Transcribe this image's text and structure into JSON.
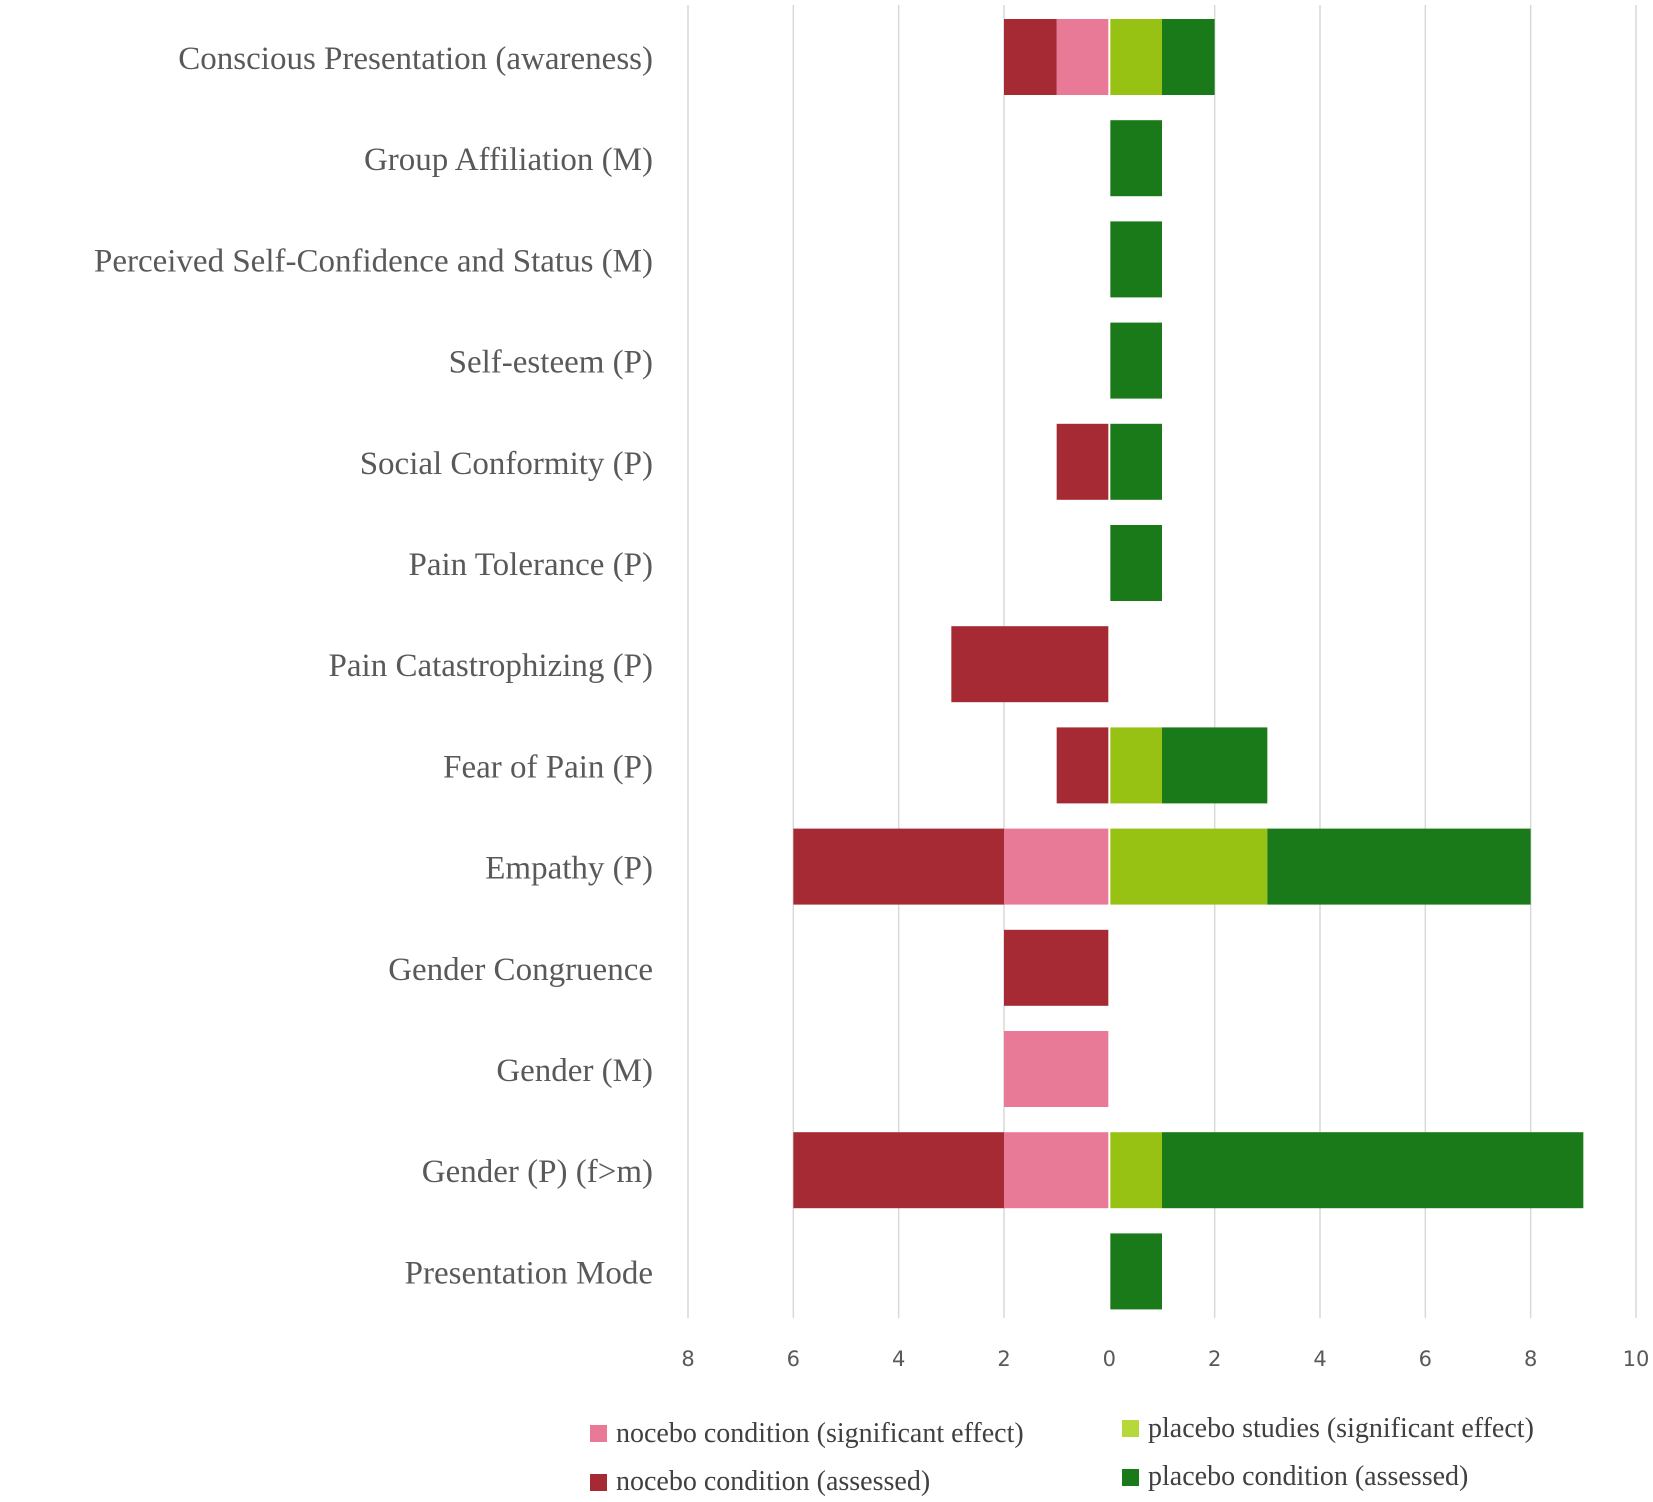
{
  "chart_data": {
    "type": "bar",
    "orientation": "horizontal-diverging",
    "title": "",
    "xlabel": "",
    "ylabel": "",
    "xlim": [
      -8,
      10
    ],
    "grid": true,
    "legend_position": "bottom",
    "categories": [
      "Conscious Presentation (awareness)",
      "Group Affiliation (M)",
      "Perceived Self-Confidence and Status (M)",
      "Self-esteem (P)",
      "Social Conformity (P)",
      "Pain Tolerance (P)",
      "Pain Catastrophizing (P)",
      "Fear of Pain (P)",
      "Empathy (P)",
      "Gender Congruence",
      "Gender (M)",
      "Gender (P) (f>m)",
      "Presentation Mode"
    ],
    "x_ticks": [
      {
        "value": -8,
        "label": "8"
      },
      {
        "value": -6,
        "label": "6"
      },
      {
        "value": -4,
        "label": "4"
      },
      {
        "value": -2,
        "label": "2"
      },
      {
        "value": 0,
        "label": "0"
      },
      {
        "value": 2,
        "label": "2"
      },
      {
        "value": 4,
        "label": "4"
      },
      {
        "value": 6,
        "label": "6"
      },
      {
        "value": 8,
        "label": "8"
      },
      {
        "value": 10,
        "label": "10"
      }
    ],
    "series": [
      {
        "name": "nocebo condition (significant effect)",
        "side": "left",
        "color": "#e97a97",
        "values": [
          1,
          0,
          0,
          0,
          0,
          0,
          0,
          0,
          2,
          0,
          2,
          2,
          0
        ]
      },
      {
        "name": "nocebo condition (assessed)",
        "side": "left",
        "color": "#a52a33",
        "values": [
          1,
          0,
          0,
          0,
          1,
          0,
          3,
          1,
          4,
          2,
          0,
          4,
          0
        ]
      },
      {
        "name": "placebo studies (significant effect)",
        "side": "right",
        "color": "#97c213",
        "values": [
          1,
          0,
          0,
          0,
          0,
          0,
          0,
          1,
          3,
          0,
          0,
          1,
          0
        ]
      },
      {
        "name": "placebo condition (assessed)",
        "side": "right",
        "color": "#1a7a1a",
        "values": [
          1,
          1,
          1,
          1,
          1,
          1,
          0,
          2,
          5,
          0,
          0,
          8,
          1
        ]
      }
    ],
    "legend": [
      {
        "label": "nocebo condition (significant effect)",
        "color": "#e97a97"
      },
      {
        "label": "placebo studies (significant effect)",
        "color": "#b7d83a"
      },
      {
        "label": "nocebo condition (assessed)",
        "color": "#a52a33"
      },
      {
        "label": "placebo condition (assessed)",
        "color": "#1a7a1a"
      }
    ],
    "gridline_color": "#d9d9d9"
  }
}
